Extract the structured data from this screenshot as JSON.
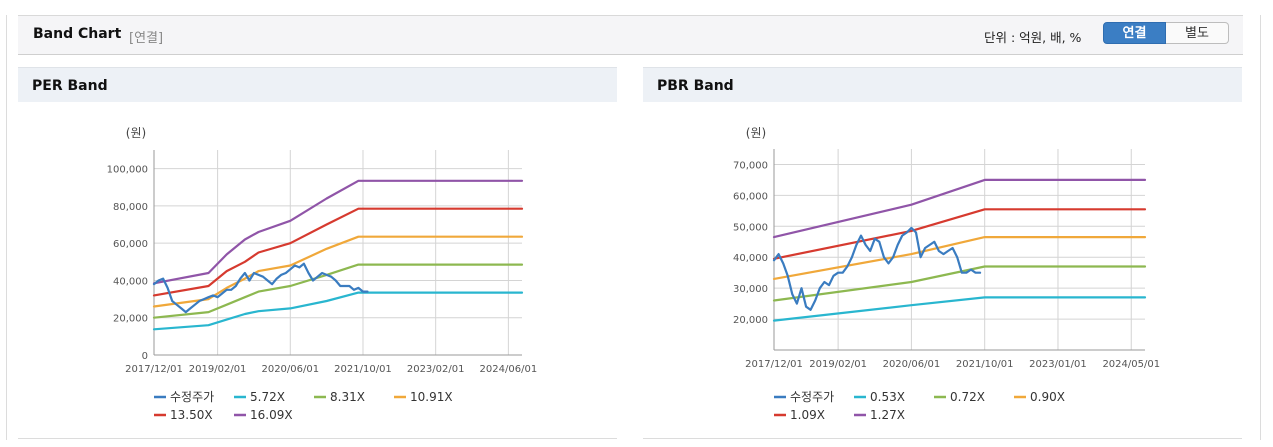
{
  "header": {
    "title": "Band Chart",
    "subtitle": "[연결]",
    "unit_text": "단위 : 억원, 배, %",
    "toggle_active": "연결",
    "toggle_inactive": "별도"
  },
  "chart_data": [
    {
      "type": "line",
      "title": "PER Band",
      "ylabel": "(원)",
      "ylim": [
        0,
        110000
      ],
      "yticks": [
        0,
        20000,
        40000,
        60000,
        80000,
        100000
      ],
      "ytick_labels": [
        "0",
        "20,000",
        "40,000",
        "60,000",
        "80,000",
        "100,000"
      ],
      "xlim": [
        0,
        81
      ],
      "x_ticks": [
        0,
        14,
        30,
        46,
        62,
        78
      ],
      "x_tick_labels": [
        "2017/12/01",
        "2019/02/01",
        "2020/06/01",
        "2021/10/01",
        "2023/02/01",
        "2024/06/01"
      ],
      "grid": true,
      "legend_position": "bottom",
      "series": [
        {
          "name": "수정주가",
          "color": "#3a7cc0",
          "points": [
            [
              0,
              38000
            ],
            [
              1,
              40000
            ],
            [
              2,
              41000
            ],
            [
              3,
              36000
            ],
            [
              4,
              29000
            ],
            [
              5,
              27000
            ],
            [
              6,
              25000
            ],
            [
              7,
              23000
            ],
            [
              8,
              25000
            ],
            [
              9,
              27000
            ],
            [
              10,
              29000
            ],
            [
              11,
              30000
            ],
            [
              12,
              31000
            ],
            [
              13,
              32000
            ],
            [
              14,
              31000
            ],
            [
              15,
              33000
            ],
            [
              16,
              35000
            ],
            [
              17,
              35000
            ],
            [
              18,
              37000
            ],
            [
              19,
              41000
            ],
            [
              20,
              44000
            ],
            [
              21,
              40000
            ],
            [
              22,
              44000
            ],
            [
              23,
              43000
            ],
            [
              24,
              42000
            ],
            [
              25,
              40000
            ],
            [
              26,
              38000
            ],
            [
              27,
              41000
            ],
            [
              28,
              43000
            ],
            [
              29,
              44000
            ],
            [
              30,
              46000
            ],
            [
              31,
              48000
            ],
            [
              32,
              47000
            ],
            [
              33,
              49000
            ],
            [
              34,
              44000
            ],
            [
              35,
              40000
            ],
            [
              36,
              42000
            ],
            [
              37,
              44000
            ],
            [
              38,
              43000
            ],
            [
              39,
              42000
            ],
            [
              40,
              40000
            ],
            [
              41,
              37000
            ],
            [
              42,
              37000
            ],
            [
              43,
              37000
            ],
            [
              44,
              35000
            ],
            [
              45,
              36000
            ],
            [
              46,
              34000
            ],
            [
              47,
              34000
            ]
          ]
        },
        {
          "name": "5.72X",
          "color": "#29b6cf",
          "points": [
            [
              0,
              13800
            ],
            [
              12,
              16000
            ],
            [
              16,
              19000
            ],
            [
              20,
              22000
            ],
            [
              23,
              23500
            ],
            [
              30,
              25000
            ],
            [
              38,
              29000
            ],
            [
              45,
              33500
            ],
            [
              81,
              33500
            ]
          ]
        },
        {
          "name": "8.31X",
          "color": "#8db850",
          "points": [
            [
              0,
              20000
            ],
            [
              12,
              23000
            ],
            [
              16,
              27000
            ],
            [
              20,
              31000
            ],
            [
              23,
              34000
            ],
            [
              30,
              37000
            ],
            [
              38,
              43000
            ],
            [
              45,
              48500
            ],
            [
              81,
              48500
            ]
          ]
        },
        {
          "name": "10.91X",
          "color": "#f0a83a",
          "points": [
            [
              0,
              26000
            ],
            [
              12,
              30000
            ],
            [
              16,
              36000
            ],
            [
              20,
              41000
            ],
            [
              23,
              45000
            ],
            [
              30,
              48000
            ],
            [
              38,
              57000
            ],
            [
              45,
              63500
            ],
            [
              81,
              63500
            ]
          ]
        },
        {
          "name": "13.50X",
          "color": "#d63a2f",
          "points": [
            [
              0,
              32000
            ],
            [
              12,
              37000
            ],
            [
              16,
              45000
            ],
            [
              20,
              50000
            ],
            [
              23,
              55000
            ],
            [
              30,
              60000
            ],
            [
              38,
              70000
            ],
            [
              45,
              78500
            ],
            [
              81,
              78500
            ]
          ]
        },
        {
          "name": "16.09X",
          "color": "#9055a8",
          "points": [
            [
              0,
              38500
            ],
            [
              12,
              44000
            ],
            [
              16,
              54000
            ],
            [
              20,
              62000
            ],
            [
              23,
              66000
            ],
            [
              30,
              72000
            ],
            [
              38,
              84000
            ],
            [
              45,
              93500
            ],
            [
              81,
              93500
            ]
          ]
        }
      ]
    },
    {
      "type": "line",
      "title": "PBR Band",
      "ylabel": "(원)",
      "ylim": [
        10000,
        75000
      ],
      "yticks": [
        20000,
        30000,
        40000,
        50000,
        60000,
        70000
      ],
      "ytick_labels": [
        "20,000",
        "30,000",
        "40,000",
        "50,000",
        "60,000",
        "70,000"
      ],
      "xlim": [
        0,
        81
      ],
      "x_ticks": [
        0,
        14,
        30,
        46,
        62,
        78
      ],
      "x_tick_labels": [
        "2017/12/01",
        "2019/02/01",
        "2020/06/01",
        "2021/10/01",
        "2023/01/01",
        "2024/05/01"
      ],
      "grid": true,
      "legend_position": "bottom",
      "series": [
        {
          "name": "수정주가",
          "color": "#3a7cc0",
          "points": [
            [
              0,
              39000
            ],
            [
              1,
              41000
            ],
            [
              2,
              38000
            ],
            [
              3,
              34000
            ],
            [
              4,
              28000
            ],
            [
              5,
              25000
            ],
            [
              6,
              30000
            ],
            [
              7,
              24000
            ],
            [
              8,
              23000
            ],
            [
              9,
              26000
            ],
            [
              10,
              30000
            ],
            [
              11,
              32000
            ],
            [
              12,
              31000
            ],
            [
              13,
              34000
            ],
            [
              14,
              35000
            ],
            [
              15,
              35000
            ],
            [
              16,
              37000
            ],
            [
              17,
              40000
            ],
            [
              18,
              44000
            ],
            [
              19,
              47000
            ],
            [
              20,
              44000
            ],
            [
              21,
              42000
            ],
            [
              22,
              46000
            ],
            [
              23,
              45000
            ],
            [
              24,
              40000
            ],
            [
              25,
              38000
            ],
            [
              26,
              40000
            ],
            [
              27,
              44000
            ],
            [
              28,
              47000
            ],
            [
              29,
              48000
            ],
            [
              30,
              49500
            ],
            [
              31,
              48000
            ],
            [
              32,
              40000
            ],
            [
              33,
              43000
            ],
            [
              34,
              44000
            ],
            [
              35,
              45000
            ],
            [
              36,
              42000
            ],
            [
              37,
              41000
            ],
            [
              38,
              42000
            ],
            [
              39,
              43000
            ],
            [
              40,
              40000
            ],
            [
              41,
              35000
            ],
            [
              42,
              35000
            ],
            [
              43,
              36000
            ],
            [
              44,
              35000
            ],
            [
              45,
              35000
            ]
          ]
        },
        {
          "name": "0.53X",
          "color": "#29b6cf",
          "points": [
            [
              0,
              19500
            ],
            [
              30,
              24500
            ],
            [
              46,
              27000
            ],
            [
              81,
              27000
            ]
          ]
        },
        {
          "name": "0.72X",
          "color": "#8db850",
          "points": [
            [
              0,
              26000
            ],
            [
              30,
              32000
            ],
            [
              46,
              37000
            ],
            [
              81,
              37000
            ]
          ]
        },
        {
          "name": "0.90X",
          "color": "#f0a83a",
          "points": [
            [
              0,
              33000
            ],
            [
              30,
              41000
            ],
            [
              46,
              46500
            ],
            [
              81,
              46500
            ]
          ]
        },
        {
          "name": "1.09X",
          "color": "#d63a2f",
          "points": [
            [
              0,
              39500
            ],
            [
              30,
              48500
            ],
            [
              46,
              55500
            ],
            [
              81,
              55500
            ]
          ]
        },
        {
          "name": "1.27X",
          "color": "#9055a8",
          "points": [
            [
              0,
              46500
            ],
            [
              30,
              57000
            ],
            [
              46,
              65000
            ],
            [
              81,
              65000
            ]
          ]
        }
      ]
    }
  ]
}
